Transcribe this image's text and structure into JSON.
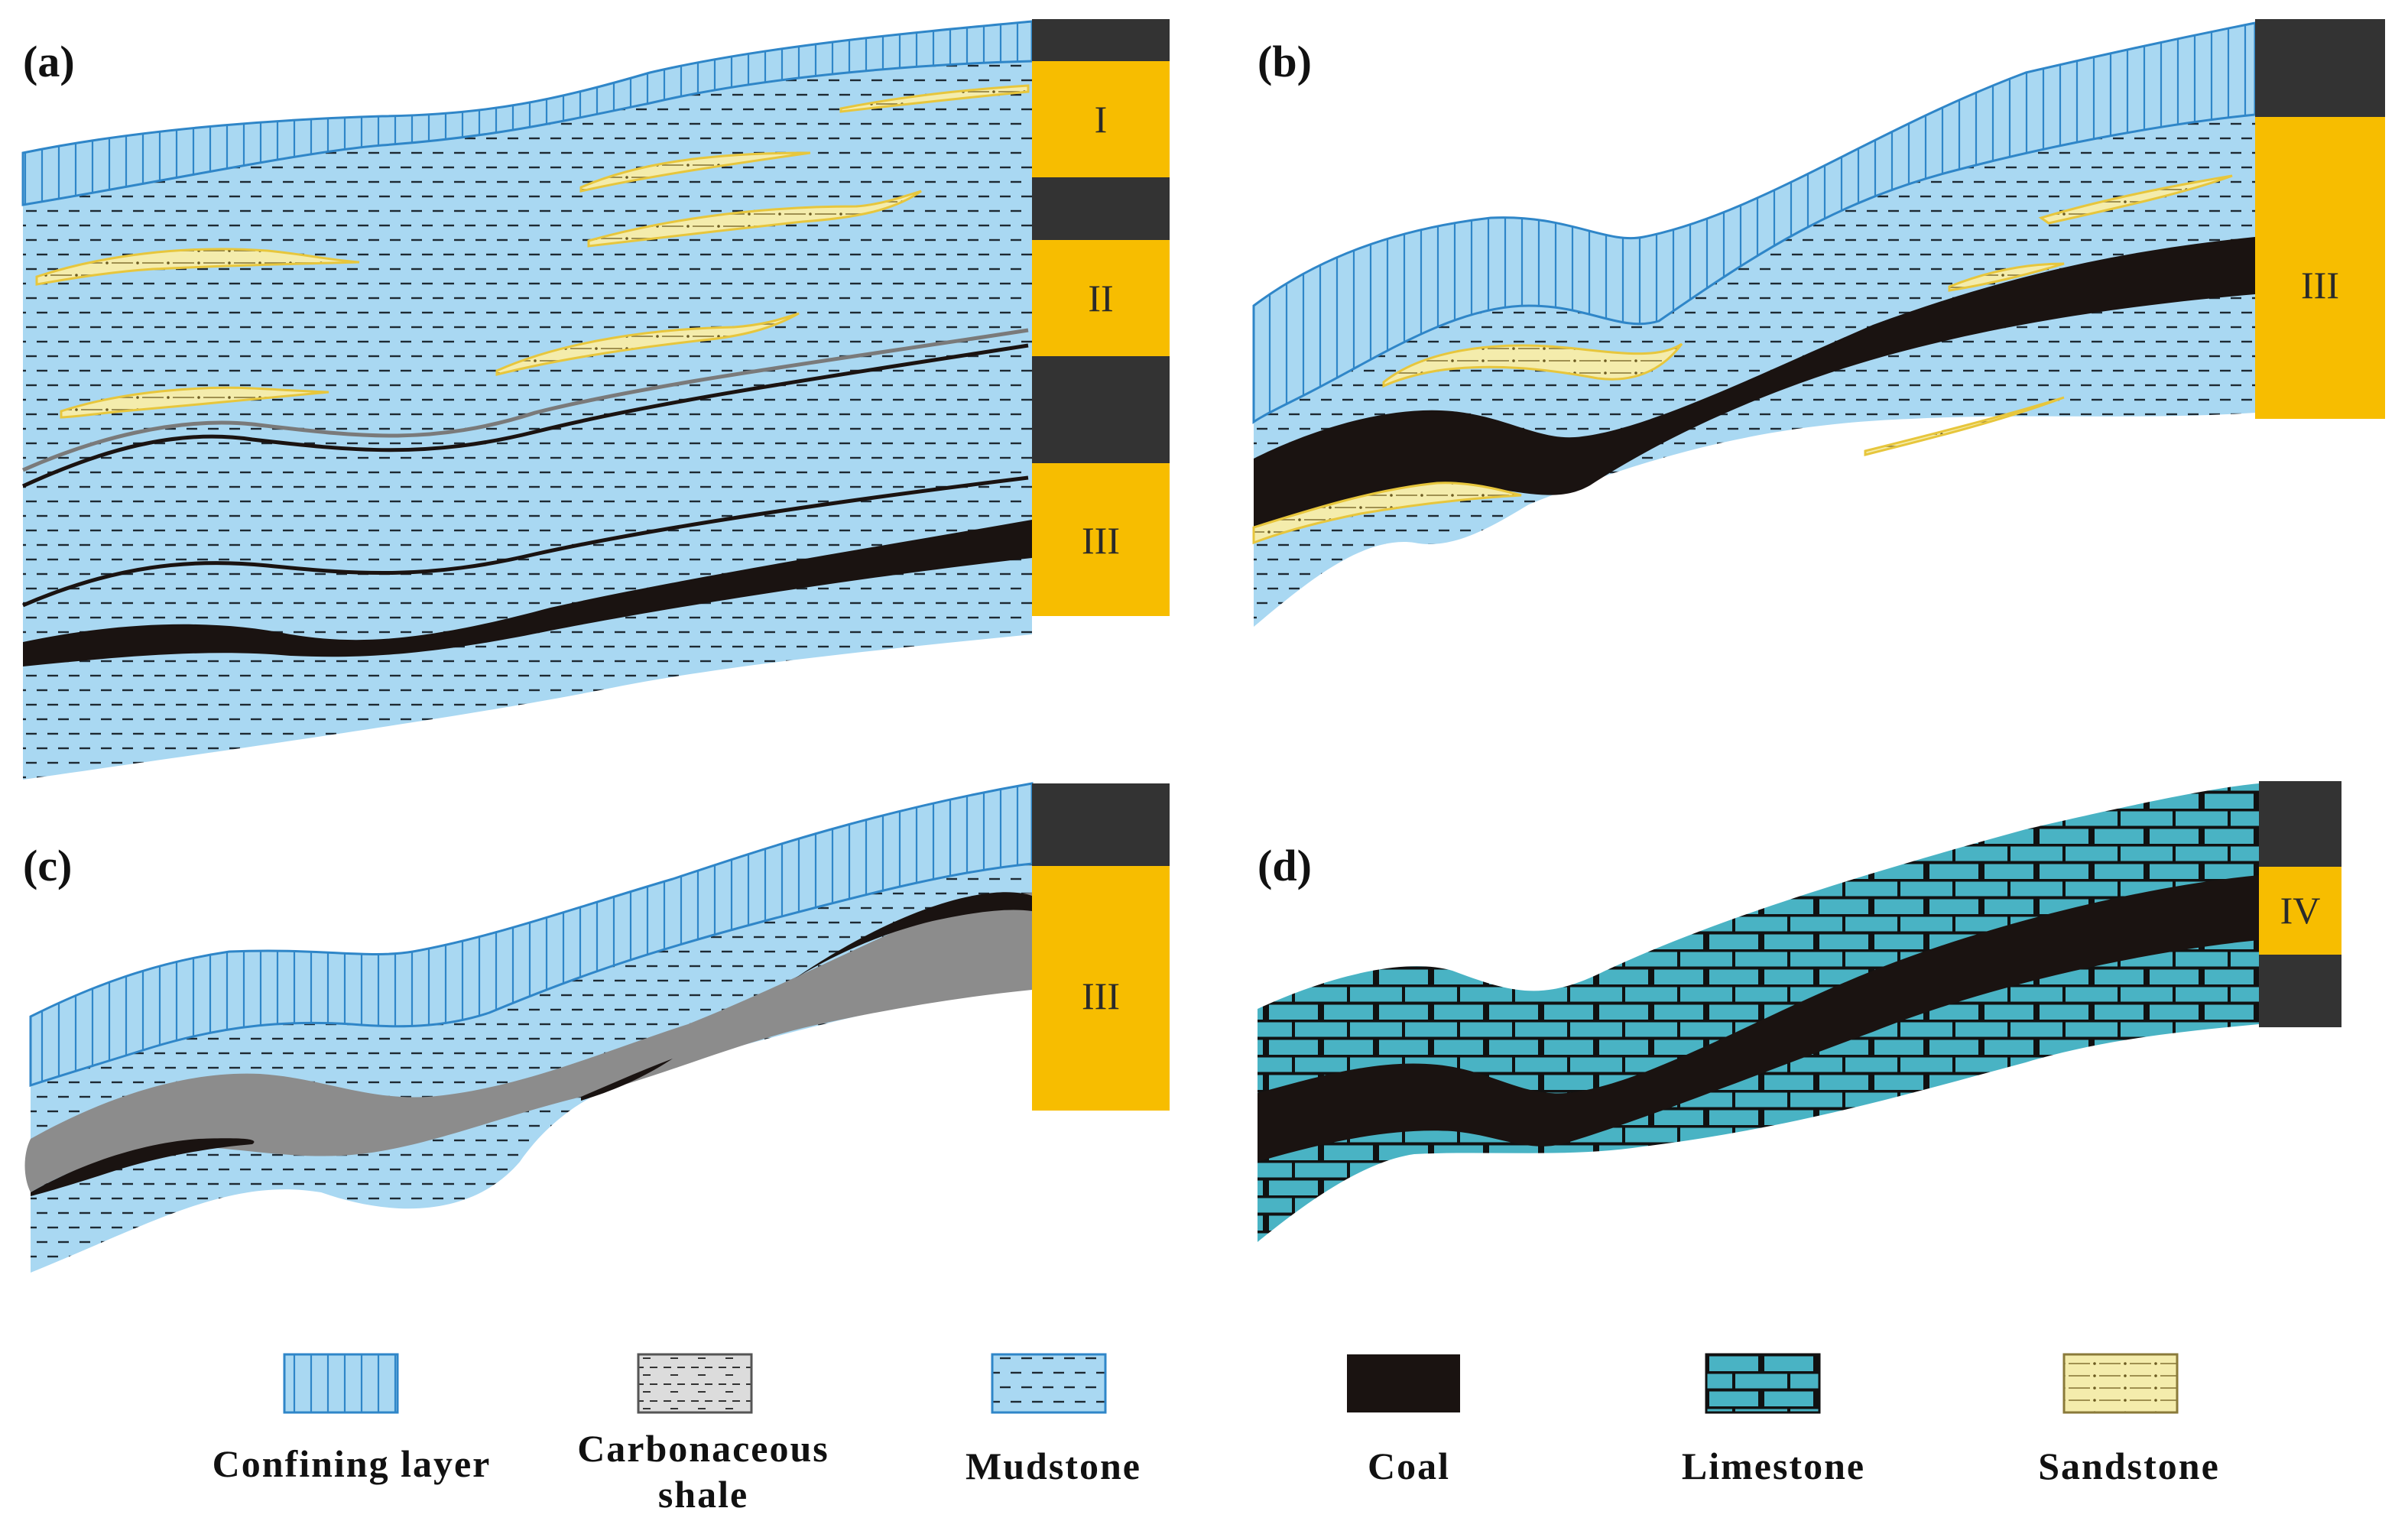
{
  "figure": {
    "panels": [
      {
        "label": "(a)",
        "units": [
          "I",
          "II",
          "III"
        ]
      },
      {
        "label": "(b)",
        "units": [
          "III"
        ]
      },
      {
        "label": "(c)",
        "units": [
          "III"
        ]
      },
      {
        "label": "(d)",
        "units": [
          "IV"
        ]
      }
    ],
    "legend": [
      {
        "label": "Confining layer",
        "pattern": "confining"
      },
      {
        "label_line1": "Carbonaceous",
        "label_line2": "shale",
        "pattern": "carbshale"
      },
      {
        "label": "Mudstone",
        "pattern": "mudstone"
      },
      {
        "label": "Coal",
        "pattern": "coal"
      },
      {
        "label": "Limestone",
        "pattern": "limestone"
      },
      {
        "label": "Sandstone",
        "pattern": "sandstone"
      }
    ],
    "colors": {
      "mudstone": "#a9d8f2",
      "confining": "#a9d8f2",
      "coal": "#1a1311",
      "column_gap": "#333333",
      "column_unit": "#f7bd00",
      "shale": "#8c8c8c",
      "limestone": "#49b3c4",
      "sandstone": "#f4ecac"
    }
  }
}
